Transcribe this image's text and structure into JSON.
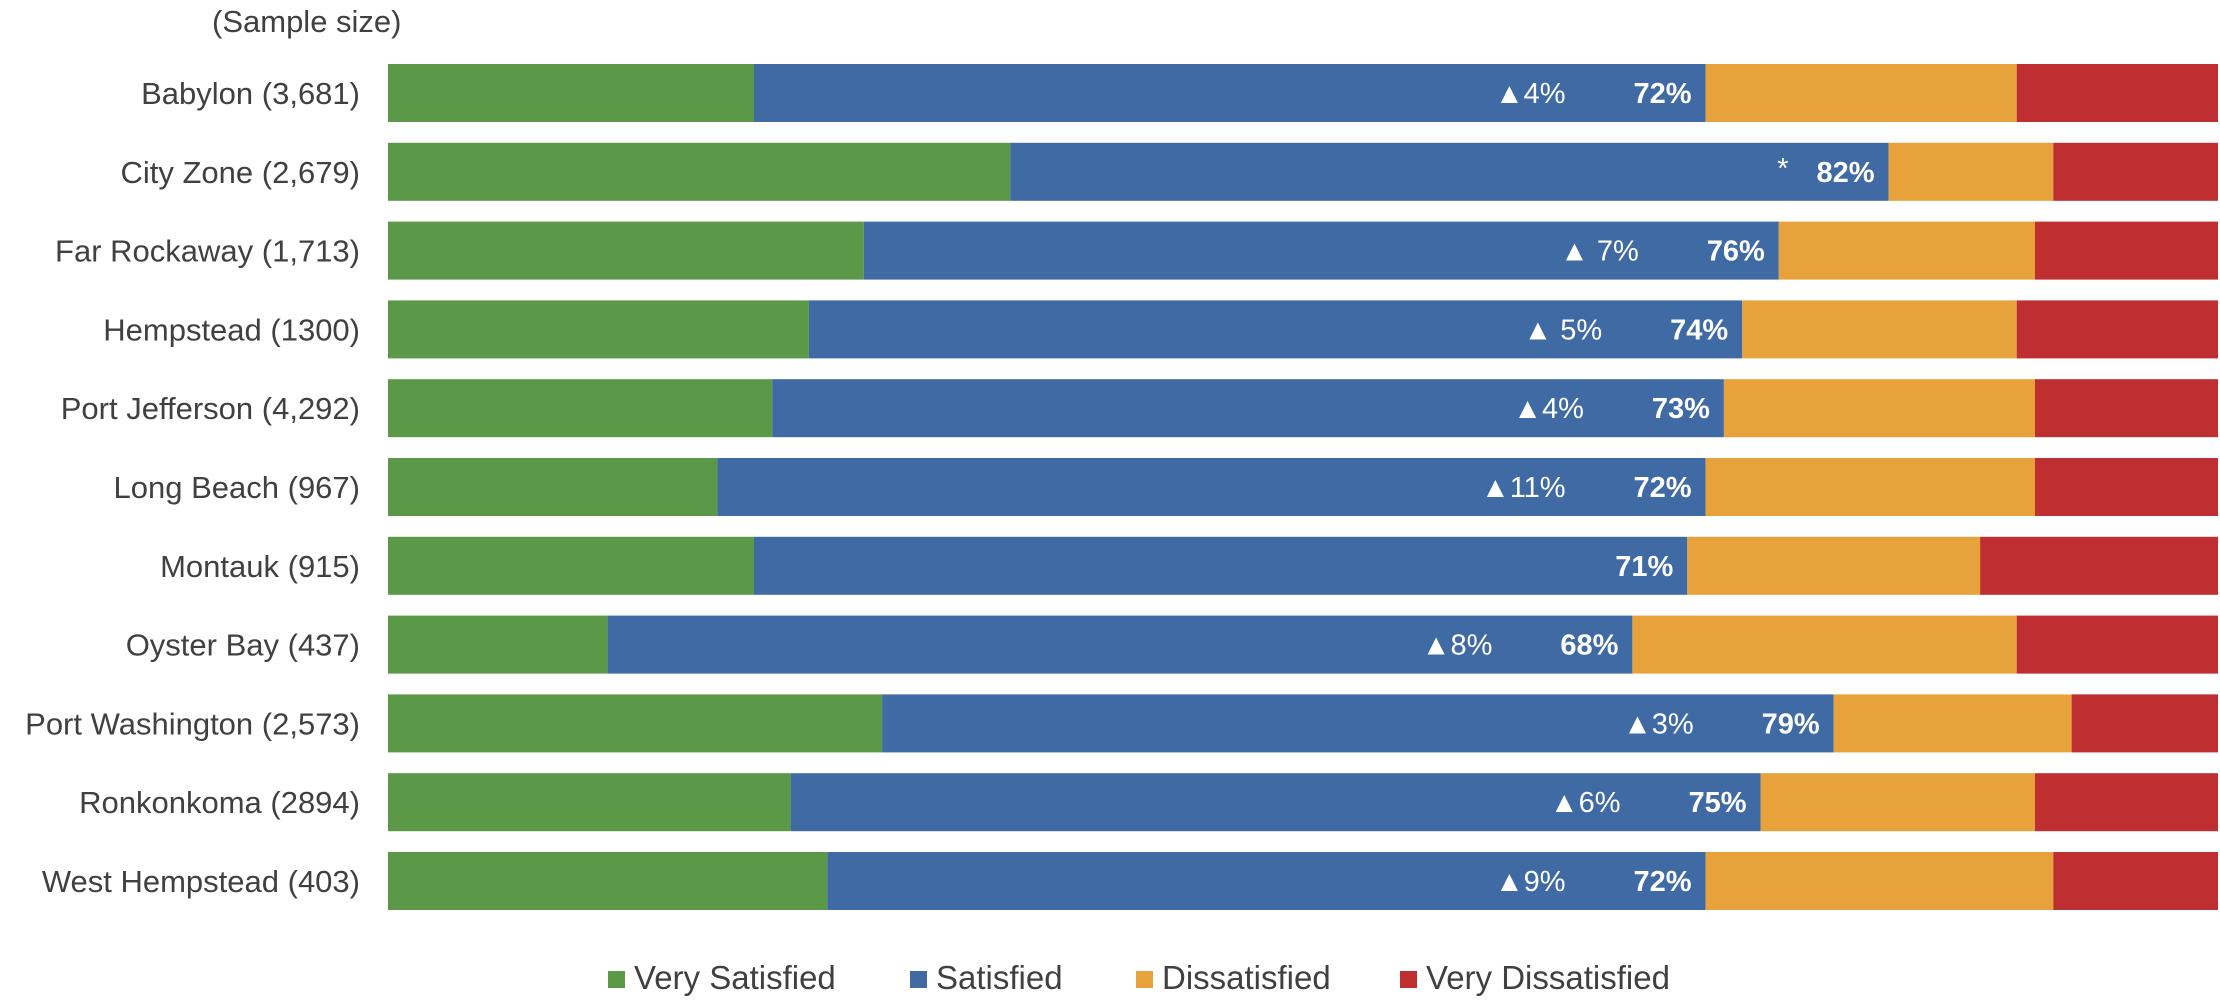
{
  "chart_data": {
    "type": "bar",
    "orientation": "horizontal",
    "stacked": true,
    "normalized": true,
    "subtitle": "(Sample size)",
    "categories": [
      "Babylon (3,681)",
      "City Zone (2,679)",
      "Far Rockaway (1,713)",
      "Hempstead (1300)",
      "Port Jefferson (4,292)",
      "Long Beach (967)",
      "Montauk (915)",
      "Oyster Bay (437)",
      "Port Washington (2,573)",
      "Ronkonkoma (2894)",
      "West Hempstead (403)"
    ],
    "series": [
      {
        "name": "Very Satisfied",
        "color": "#5b9847",
        "values": [
          20,
          34,
          26,
          23,
          21,
          18,
          20,
          12,
          27,
          22,
          24
        ]
      },
      {
        "name": "Satisfied",
        "color": "#3f6aa3",
        "values": [
          52,
          48,
          50,
          51,
          52,
          54,
          51,
          56,
          52,
          53,
          48
        ]
      },
      {
        "name": "Dissatisfied",
        "color": "#e8a23c",
        "values": [
          17,
          9,
          14,
          15,
          17,
          18,
          16,
          21,
          13,
          15,
          19
        ]
      },
      {
        "name": "Very Dissatisfied",
        "color": "#bf2e31",
        "values": [
          11,
          9,
          10,
          11,
          10,
          10,
          13,
          11,
          8,
          10,
          9
        ]
      }
    ],
    "totals": [
      "72%",
      "82%",
      "76%",
      "74%",
      "73%",
      "72%",
      "71%",
      "68%",
      "79%",
      "75%",
      "72%"
    ],
    "changes": [
      "▲4%",
      "*",
      "▲ 7%",
      "▲ 5%",
      "▲4%",
      "▲11%",
      "",
      "▲8%",
      "▲3%",
      "▲6%",
      "▲9%"
    ],
    "xlim": [
      0,
      100
    ],
    "grid": false,
    "legend_position": "bottom"
  }
}
